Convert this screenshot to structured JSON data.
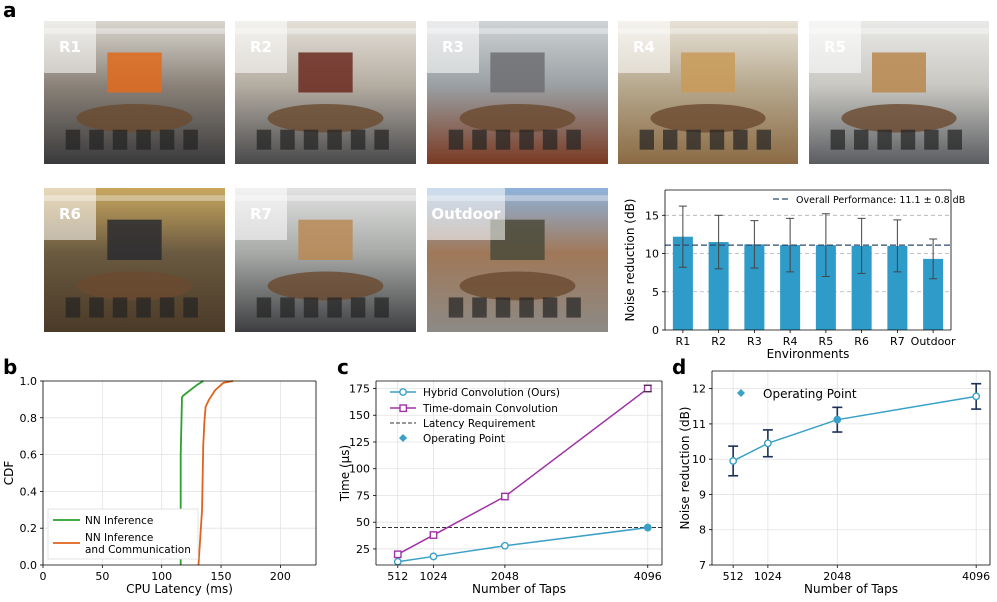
{
  "panels": {
    "a": "a",
    "b": "b",
    "c": "c",
    "d": "d"
  },
  "photos": [
    {
      "label": "R1",
      "sky": "#d9d6cf",
      "wall": "#8a8278",
      "floor": "#3a3a3c",
      "accent": "#e06a1c"
    },
    {
      "label": "R2",
      "sky": "#e4e0d8",
      "wall": "#b4ada2",
      "floor": "#4a4a4c",
      "accent": "#6b2a20"
    },
    {
      "label": "R3",
      "sky": "#cfd3d6",
      "wall": "#9aa0a3",
      "floor": "#7a3a22",
      "accent": "#6e6f72"
    },
    {
      "label": "R4",
      "sky": "#e7e2d6",
      "wall": "#b7a98f",
      "floor": "#8a6a44",
      "accent": "#c99a58"
    },
    {
      "label": "R5",
      "sky": "#e9e9e7",
      "wall": "#c9c8c3",
      "floor": "#5a5c60",
      "accent": "#b8874e"
    },
    {
      "label": "R6",
      "sky": "#c9a760",
      "wall": "#6a5a40",
      "floor": "#4a3a28",
      "accent": "#2a2a30"
    },
    {
      "label": "R7",
      "sky": "#e0e1e0",
      "wall": "#a8aaa8",
      "floor": "#3d3e40",
      "accent": "#b88a55"
    },
    {
      "label": "Outdoor",
      "sky": "#8fb3dc",
      "wall": "#a07858",
      "floor": "#8c8a86",
      "accent": "#4a4a3a"
    }
  ],
  "colors": {
    "bar": "#2f9bc8",
    "nn_inference": "#2ca02c",
    "nn_comm": "#e0621c",
    "hybrid": "#3aa0c8",
    "timedomain": "#a032a6",
    "operating": "#3aa0c8",
    "error_d": "#1a2f5a"
  },
  "chart_data": [
    {
      "type": "bar",
      "panel": "a",
      "categories": [
        "R1",
        "R2",
        "R3",
        "R4",
        "R5",
        "R6",
        "R7",
        "Outdoor"
      ],
      "values": [
        12.2,
        11.5,
        11.2,
        11.1,
        11.1,
        11.0,
        11.0,
        9.3
      ],
      "errors": [
        4.0,
        3.5,
        3.1,
        3.5,
        4.1,
        3.6,
        3.4,
        2.6
      ],
      "xlabel": "Environments",
      "ylabel": "Noise reduction (dB)",
      "ylim": [
        0,
        17
      ],
      "yticks": [
        0,
        5,
        10,
        15
      ],
      "reference_line": {
        "value": 11.1,
        "label": "Overall Performance: 11.1 ± 0.8 dB"
      },
      "grid": "y dashed",
      "legend": "top"
    },
    {
      "type": "line",
      "panel": "b",
      "xlabel": "CPU Latency (ms)",
      "ylabel": "CDF",
      "xlim": [
        0,
        230
      ],
      "ylim": [
        0,
        1
      ],
      "xticks": [
        0,
        50,
        100,
        150,
        200
      ],
      "yticks": [
        0.0,
        0.2,
        0.4,
        0.6,
        0.8,
        1.0
      ],
      "yticklabels": [
        "0.0",
        "0.2",
        "0.4",
        "0.6",
        "0.8",
        "1.0"
      ],
      "series": [
        {
          "name": "NN Inference",
          "x": [
            116,
            116,
            116,
            117,
            117,
            118,
            120,
            124,
            130,
            135
          ],
          "y": [
            0.0,
            0.29,
            0.6,
            0.88,
            0.91,
            0.92,
            0.93,
            0.95,
            0.98,
            1.0
          ]
        },
        {
          "name": "NN Inference\nand Communication",
          "x": [
            131,
            132,
            134,
            135,
            136,
            137,
            140,
            145,
            152,
            160
          ],
          "y": [
            0.0,
            0.1,
            0.3,
            0.65,
            0.78,
            0.86,
            0.9,
            0.95,
            0.99,
            1.0
          ]
        }
      ],
      "legend": "bottom-left",
      "grid": true
    },
    {
      "type": "line",
      "panel": "c",
      "xlabel": "Number of Taps",
      "ylabel": "Time (μs)",
      "categories": [
        "512",
        "1024",
        "2048",
        "4096"
      ],
      "x": [
        512,
        1024,
        2048,
        4096
      ],
      "xlim": [
        200,
        4300
      ],
      "ylim": [
        10,
        182
      ],
      "yticks": [
        25,
        50,
        75,
        100,
        125,
        150,
        175
      ],
      "series": [
        {
          "name": "Hybrid Convolution (Ours)",
          "values": [
            13,
            18,
            28,
            45
          ]
        },
        {
          "name": "Time-domain Convolution",
          "values": [
            20,
            38,
            74,
            175
          ]
        }
      ],
      "latency_requirement": {
        "name": "Latency Requirement",
        "value": 45
      },
      "operating_point": {
        "name": "Operating Point",
        "x": 4096,
        "y": 45
      },
      "legend": "top-left",
      "grid": true
    },
    {
      "type": "line",
      "panel": "d",
      "xlabel": "Number of Taps",
      "ylabel": "Noise reduction (dB)",
      "categories": [
        "512",
        "1024",
        "2048",
        "4096"
      ],
      "x": [
        512,
        1024,
        2048,
        4096
      ],
      "xlim": [
        200,
        4300
      ],
      "ylim": [
        7,
        12.5
      ],
      "yticks": [
        7,
        8,
        9,
        10,
        11,
        12
      ],
      "series": [
        {
          "name": "",
          "values": [
            9.95,
            10.45,
            11.12,
            11.78
          ],
          "errors": [
            0.42,
            0.38,
            0.35,
            0.36
          ]
        }
      ],
      "operating_point": {
        "name": "Operating Point",
        "x": 2048,
        "y": 11.12
      },
      "legend": "top-left",
      "grid": true
    }
  ]
}
